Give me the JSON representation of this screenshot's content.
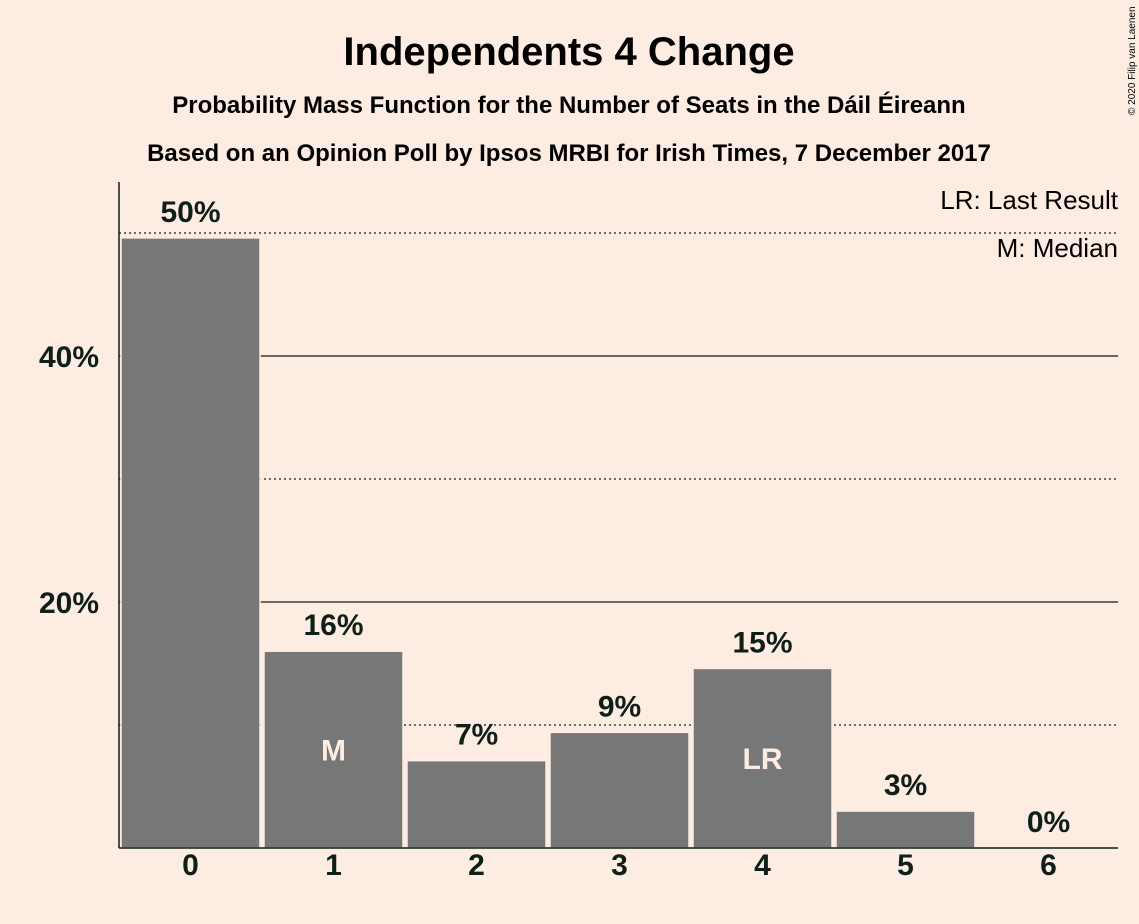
{
  "title": "Independents 4 Change",
  "subtitle1": "Probability Mass Function for the Number of Seats in the Dáil Éireann",
  "subtitle2": "Based on an Opinion Poll by Ipsos MRBI for Irish Times, 7 December 2017",
  "copyright": "© 2020 Filip van Laenen",
  "legend": {
    "lr": "LR: Last Result",
    "m": "M: Median"
  },
  "colors": {
    "background": "#FDECE2",
    "bar": "#777777",
    "text": "#0D1F17"
  },
  "chart_data": {
    "type": "bar",
    "categories": [
      "0",
      "1",
      "2",
      "3",
      "4",
      "5",
      "6"
    ],
    "values": [
      49.6,
      16.0,
      7.1,
      9.4,
      14.6,
      3.0,
      0.0
    ],
    "value_labels": [
      "50%",
      "16%",
      "7%",
      "9%",
      "15%",
      "3%",
      "0%"
    ],
    "bar_markers": [
      "",
      "M",
      "",
      "",
      "LR",
      "",
      ""
    ],
    "yticks": [
      20,
      40
    ],
    "ytick_labels": [
      "20%",
      "40%"
    ],
    "ylim": [
      0,
      54
    ],
    "grid": {
      "solid": [
        20,
        40
      ],
      "dotted": [
        10,
        30,
        50
      ]
    }
  }
}
